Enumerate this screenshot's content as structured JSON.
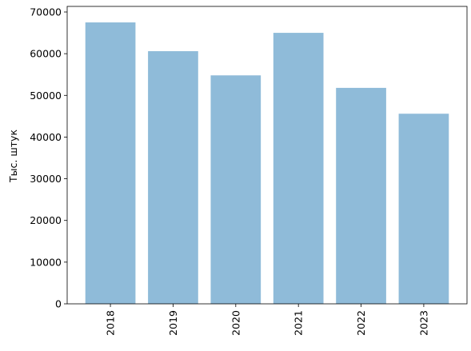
{
  "chart_data": {
    "type": "bar",
    "ylabel": "Тыс. штук",
    "categories": [
      "2018",
      "2019",
      "2020",
      "2021",
      "2022",
      "2023"
    ],
    "values": [
      67500,
      60600,
      54800,
      65000,
      51800,
      45600
    ],
    "color": "#8fbbd9",
    "ylim": [
      0,
      70000
    ],
    "yticks": [
      0,
      10000,
      20000,
      30000,
      40000,
      50000,
      60000,
      70000
    ]
  }
}
